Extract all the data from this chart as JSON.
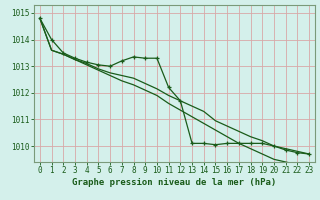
{
  "title": "Graphe pression niveau de la mer (hPa)",
  "bg_color": "#d4f0eb",
  "grid_color": "#d8a8a8",
  "line_color": "#1a5c1a",
  "spine_color": "#7a9a7a",
  "xlim": [
    -0.5,
    23.5
  ],
  "ylim": [
    1009.4,
    1015.3
  ],
  "yticks": [
    1010,
    1011,
    1012,
    1013,
    1014,
    1015
  ],
  "xticks": [
    0,
    1,
    2,
    3,
    4,
    5,
    6,
    7,
    8,
    9,
    10,
    11,
    12,
    13,
    14,
    15,
    16,
    17,
    18,
    19,
    20,
    21,
    22,
    23
  ],
  "series": [
    [
      1014.8,
      1014.0,
      1013.5,
      1013.3,
      1013.15,
      1013.05,
      1013.0,
      1013.2,
      1013.35,
      1013.3,
      1013.3,
      1012.2,
      1011.7,
      1010.1,
      1010.1,
      1010.05,
      1010.1,
      1010.1,
      1010.1,
      1010.1,
      1010.0,
      1009.85,
      1009.75,
      1009.7
    ],
    [
      1014.8,
      1013.6,
      1013.45,
      1013.25,
      1013.1,
      1012.9,
      1012.75,
      1012.65,
      1012.55,
      1012.35,
      1012.15,
      1011.9,
      1011.7,
      1011.5,
      1011.3,
      1010.95,
      1010.75,
      1010.55,
      1010.35,
      1010.2,
      1010.0,
      1009.9,
      1009.8,
      1009.7
    ],
    [
      1014.8,
      1013.6,
      1013.45,
      1013.25,
      1013.05,
      1012.85,
      1012.65,
      1012.45,
      1012.3,
      1012.1,
      1011.9,
      1011.6,
      1011.35,
      1011.1,
      1010.85,
      1010.6,
      1010.35,
      1010.1,
      1009.9,
      1009.7,
      1009.5,
      1009.4,
      1009.3,
      1009.2
    ]
  ]
}
